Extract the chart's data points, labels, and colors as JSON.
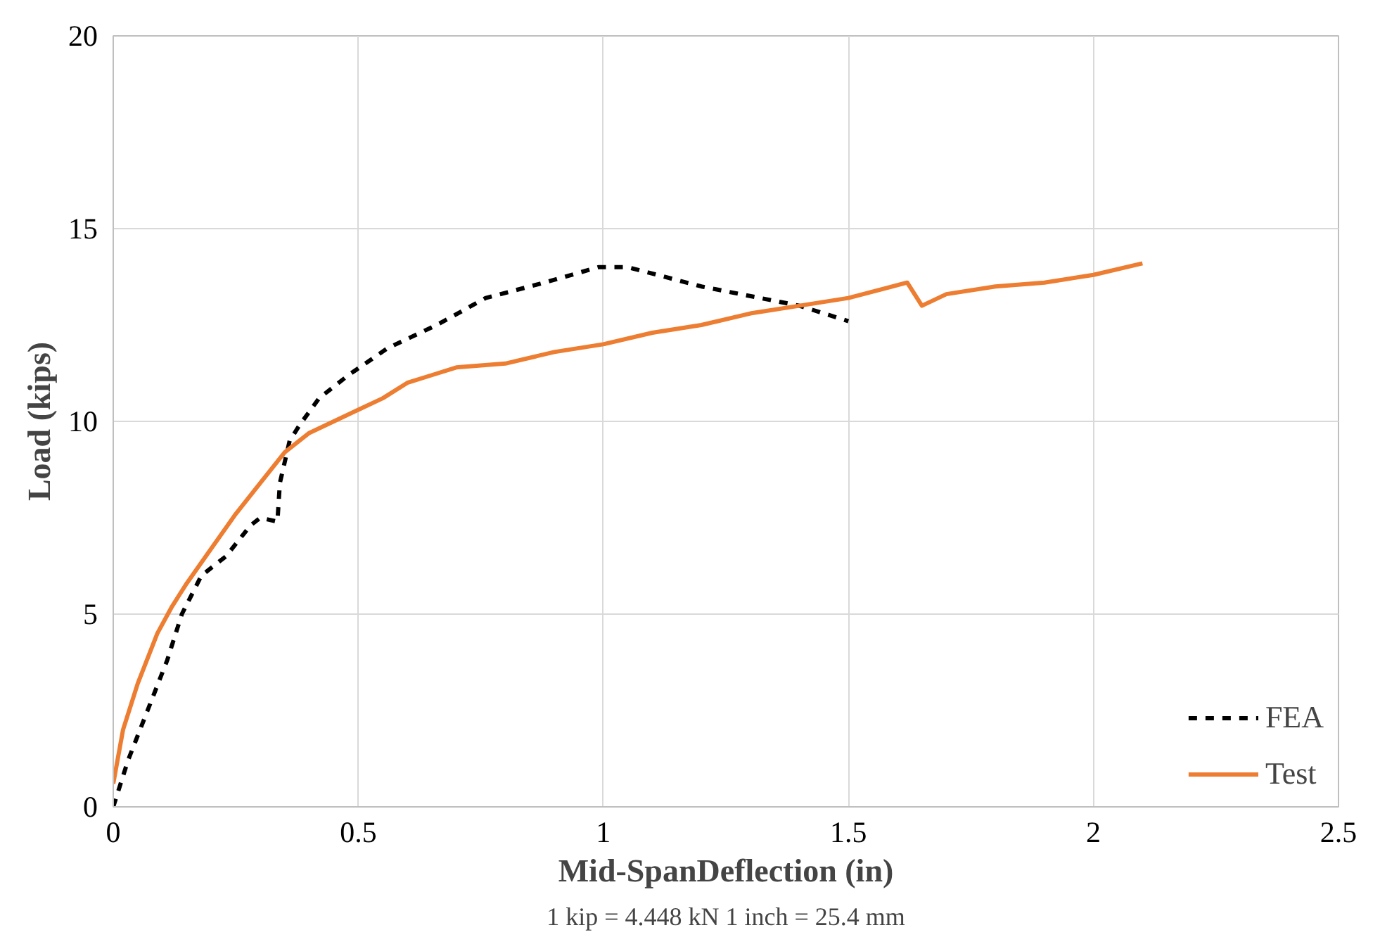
{
  "chart_data": {
    "type": "line",
    "xlabel": "Mid-SpanDeflection (in)",
    "ylabel": "Load (kips)",
    "annotations": [
      "1 kip = 4.448 kN 1 inch = 25.4 mm"
    ],
    "xlim": [
      0,
      2.5
    ],
    "ylim": [
      0,
      20
    ],
    "xticks": [
      0,
      0.5,
      1,
      1.5,
      2,
      2.5
    ],
    "yticks": [
      0,
      5,
      10,
      15,
      20
    ],
    "grid": true,
    "legend": "bottom right",
    "series": [
      {
        "name": "FEA",
        "color": "#000000",
        "line_style": "dashed",
        "x": [
          0,
          0.03,
          0.07,
          0.11,
          0.14,
          0.18,
          0.23,
          0.28,
          0.3,
          0.335,
          0.34,
          0.36,
          0.38,
          0.42,
          0.48,
          0.56,
          0.66,
          0.76,
          0.88,
          0.99,
          1.05,
          1.2,
          1.4,
          1.5
        ],
        "values": [
          0,
          1.2,
          2.5,
          3.8,
          5.0,
          6.0,
          6.5,
          7.3,
          7.5,
          7.4,
          8.4,
          9.5,
          9.9,
          10.6,
          11.2,
          11.9,
          12.5,
          13.2,
          13.6,
          14.0,
          14.0,
          13.5,
          13.0,
          12.6
        ]
      },
      {
        "name": "Test",
        "color": "#ed7d31",
        "line_style": "solid",
        "x": [
          0,
          0.02,
          0.05,
          0.09,
          0.12,
          0.15,
          0.2,
          0.25,
          0.3,
          0.35,
          0.4,
          0.45,
          0.5,
          0.55,
          0.6,
          0.65,
          0.7,
          0.8,
          0.9,
          1.0,
          1.1,
          1.2,
          1.3,
          1.4,
          1.5,
          1.62,
          1.65,
          1.7,
          1.8,
          1.9,
          2.0,
          2.1
        ],
        "values": [
          0.6,
          2.0,
          3.2,
          4.5,
          5.2,
          5.8,
          6.7,
          7.6,
          8.4,
          9.2,
          9.7,
          10.0,
          10.3,
          10.6,
          11.0,
          11.2,
          11.4,
          11.5,
          11.8,
          12.0,
          12.3,
          12.5,
          12.8,
          13.0,
          13.2,
          13.6,
          13.0,
          13.3,
          13.5,
          13.6,
          13.8,
          14.1
        ]
      }
    ]
  }
}
